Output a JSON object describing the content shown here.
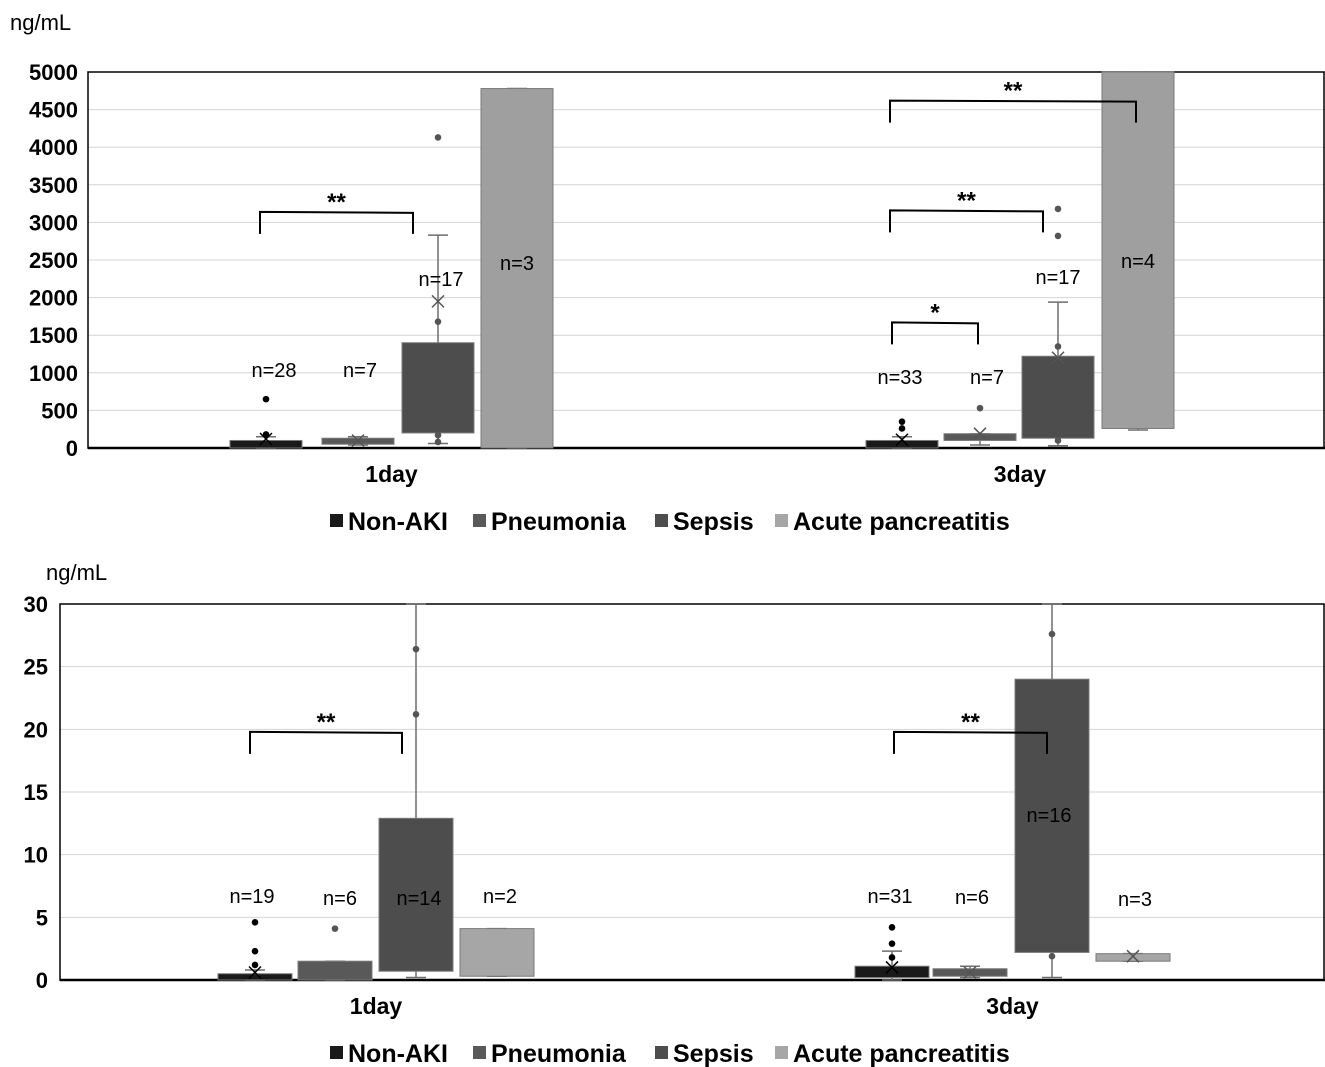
{
  "legend": [
    {
      "label": "Non-AKI",
      "color": "#1a1a1a"
    },
    {
      "label": "Pneumonia",
      "color": "#595959"
    },
    {
      "label": "Sepsis",
      "color": "#4d4d4d"
    },
    {
      "label": "Acute pancreatitis",
      "color": "#a6a6a6"
    }
  ],
  "chart_data": [
    {
      "type": "box",
      "unit_label": "ng/mL",
      "ylim": [
        0,
        5000
      ],
      "yticks": [
        0,
        500,
        1000,
        1500,
        2000,
        2500,
        3000,
        3500,
        4000,
        4500,
        5000
      ],
      "grid": true,
      "legend_position": "bottom",
      "categories": [
        "1day",
        "3day"
      ],
      "series": [
        {
          "name": "Non-AKI",
          "color": "#1a1a1a",
          "boxes": [
            {
              "q1": 0,
              "q3": 100,
              "whisker_low": 0,
              "whisker_high": 150,
              "mean": 120,
              "outliers": [
                650,
                180
              ],
              "n_label": "n=28"
            },
            {
              "q1": 0,
              "q3": 100,
              "whisker_low": 0,
              "whisker_high": 150,
              "mean": 110,
              "outliers": [
                350,
                260
              ],
              "n_label": "n=33"
            }
          ]
        },
        {
          "name": "Pneumonia",
          "color": "#595959",
          "boxes": [
            {
              "q1": 50,
              "q3": 130,
              "whisker_low": 40,
              "whisker_high": 150,
              "mean": 100,
              "outliers": [],
              "n_label": "n=7"
            },
            {
              "q1": 100,
              "q3": 190,
              "whisker_low": 40,
              "whisker_high": 190,
              "mean": 190,
              "outliers": [
                530
              ],
              "n_label": "n=7"
            }
          ]
        },
        {
          "name": "Sepsis",
          "color": "#4d4d4d",
          "boxes": [
            {
              "q1": 200,
              "q3": 1400,
              "whisker_low": 60,
              "whisker_high": 2830,
              "mean": 1950,
              "outliers": [
                4130,
                1680,
                170,
                80
              ],
              "n_label": "n=17"
            },
            {
              "q1": 130,
              "q3": 1220,
              "whisker_low": 30,
              "whisker_high": 1940,
              "mean": 1200,
              "outliers": [
                3180,
                2820,
                1350,
                100
              ],
              "n_label": "n=17"
            }
          ]
        },
        {
          "name": "Acute pancreatitis",
          "color": "#9f9f9f",
          "boxes": [
            {
              "q1": 0,
              "q3": 4780,
              "whisker_low": 0,
              "whisker_high": 4780,
              "mean": null,
              "outliers": [],
              "n_label": "n=3"
            },
            {
              "q1": 260,
              "q3": 5000,
              "whisker_low": 240,
              "whisker_high": 5000,
              "mean": null,
              "outliers": [],
              "n_label": "n=4"
            }
          ]
        }
      ],
      "significance": [
        {
          "category": "1day",
          "from": "Non-AKI",
          "to": "Sepsis",
          "label": "**",
          "y": 3140
        },
        {
          "category": "3day",
          "from": "Non-AKI",
          "to": "Acute pancreatitis",
          "label": "**",
          "y": 4620
        },
        {
          "category": "3day",
          "from": "Non-AKI",
          "to": "Sepsis",
          "label": "**",
          "y": 3160
        },
        {
          "category": "3day",
          "from": "Non-AKI",
          "to": "Pneumonia",
          "label": "*",
          "y": 1670
        }
      ]
    },
    {
      "type": "box",
      "unit_label": "ng/mL",
      "ylim": [
        0,
        30
      ],
      "yticks": [
        0,
        5,
        10,
        15,
        20,
        25,
        30
      ],
      "grid": true,
      "legend_position": "bottom",
      "categories": [
        "1day",
        "3day"
      ],
      "series": [
        {
          "name": "Non-AKI",
          "color": "#1a1a1a",
          "boxes": [
            {
              "q1": 0,
              "q3": 0.5,
              "whisker_low": 0,
              "whisker_high": 0.8,
              "mean": 0.6,
              "outliers": [
                4.6,
                2.3,
                1.2
              ],
              "n_label": "n=19"
            },
            {
              "q1": 0.2,
              "q3": 1.1,
              "whisker_low": 0,
              "whisker_high": 2.3,
              "mean": 1.0,
              "outliers": [
                4.2,
                2.9,
                1.8
              ],
              "n_label": "n=31"
            }
          ]
        },
        {
          "name": "Pneumonia",
          "color": "#595959",
          "boxes": [
            {
              "q1": 0,
              "q3": 1.5,
              "whisker_low": 0,
              "whisker_high": 1.5,
              "mean": null,
              "outliers": [
                4.1
              ],
              "n_label": "n=6"
            },
            {
              "q1": 0.3,
              "q3": 0.9,
              "whisker_low": 0.2,
              "whisker_high": 1.1,
              "mean": 0.6,
              "outliers": [],
              "n_label": "n=6"
            }
          ]
        },
        {
          "name": "Sepsis",
          "color": "#4d4d4d",
          "boxes": [
            {
              "q1": 0.7,
              "q3": 12.9,
              "whisker_low": 0.2,
              "whisker_high": 30,
              "mean": null,
              "outliers": [
                26.4,
                21.2
              ],
              "n_label": "n=14"
            },
            {
              "q1": 2.2,
              "q3": 24.0,
              "whisker_low": 0.2,
              "whisker_high": 30,
              "mean": null,
              "outliers": [
                27.6,
                1.9
              ],
              "n_label": "n=16"
            }
          ]
        },
        {
          "name": "Acute pancreatitis",
          "color": "#a6a6a6",
          "boxes": [
            {
              "q1": 0.3,
              "q3": 4.1,
              "whisker_low": 0.3,
              "whisker_high": 4.1,
              "mean": null,
              "outliers": [],
              "n_label": "n=2"
            },
            {
              "q1": 1.5,
              "q3": 2.1,
              "whisker_low": 1.5,
              "whisker_high": 2.1,
              "mean": 1.9,
              "outliers": [],
              "n_label": "n=3"
            }
          ]
        }
      ],
      "significance": [
        {
          "category": "1day",
          "from": "Non-AKI",
          "to": "Sepsis",
          "label": "**",
          "y": 19.8
        },
        {
          "category": "3day",
          "from": "Non-AKI",
          "to": "Sepsis",
          "label": "**",
          "y": 19.8
        }
      ]
    }
  ]
}
